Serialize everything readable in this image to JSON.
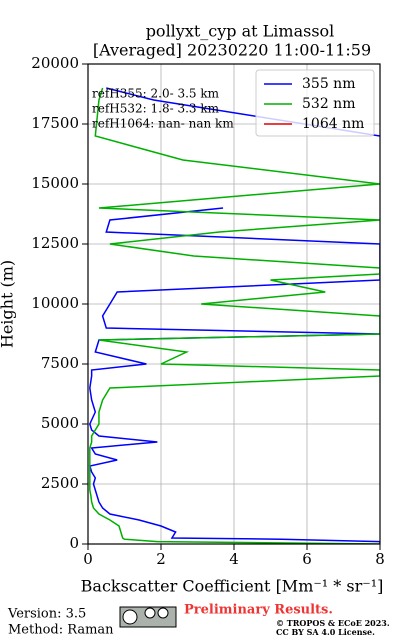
{
  "chart_data": {
    "type": "profile",
    "title": "pollyxt_cyp at Limassol",
    "subtitle": "[Averaged] 20230220 11:00-11:59",
    "xlabel": "Backscatter Coefficient [Mm⁻¹ * sr⁻¹]",
    "ylabel": "Height (m)",
    "y": [
      0,
      100,
      200,
      250,
      500,
      750,
      1000,
      1250,
      1500,
      1750,
      2000,
      2250,
      2500,
      2750,
      3000,
      3250,
      3500,
      3750,
      4000,
      4250,
      4500,
      4750,
      5000,
      5500,
      6000,
      6500,
      7000,
      7250,
      7500,
      8000,
      8500,
      8750,
      9000,
      9500,
      10000,
      10500,
      11000,
      11250,
      11500,
      12000,
      12500,
      13000,
      13500,
      14000,
      15000,
      16000,
      17000,
      18500,
      19000
    ],
    "series": [
      {
        "name": "355 nm",
        "color": "#0000ff",
        "values": [
          8,
          8,
          5.3,
          2.3,
          2.4,
          2.0,
          1.4,
          0.6,
          0.4,
          0.3,
          0.25,
          0.2,
          0.15,
          0.2,
          0.1,
          0.05,
          0.8,
          0.2,
          0.1,
          1.9,
          0.3,
          0.1,
          0.05,
          0.2,
          0.1,
          0.05,
          0.1,
          0.1,
          1.6,
          0.2,
          0.3,
          8,
          0.5,
          0.4,
          0.6,
          0.8,
          8,
          8,
          8,
          8,
          8,
          0.5,
          0.6,
          3.7,
          null,
          null,
          8,
          1.8,
          0.5
        ]
      },
      {
        "name": "532 nm",
        "color": "#00b000",
        "values": [
          8,
          1.9,
          1.0,
          0.95,
          0.9,
          0.85,
          0.6,
          0.3,
          0.15,
          0.1,
          0.08,
          0.05,
          0.05,
          0.05,
          0.05,
          0.05,
          0.05,
          0.05,
          0.05,
          0.1,
          0.1,
          0.2,
          0.3,
          0.3,
          0.4,
          0.6,
          8,
          8,
          2.0,
          2.7,
          0.3,
          8,
          8,
          8,
          3.1,
          6.5,
          5.0,
          8,
          8,
          2.9,
          0.6,
          3.6,
          8,
          0.3,
          8,
          2.6,
          0.2,
          0.3,
          0.4
        ]
      },
      {
        "name": "1064 nm",
        "color": "#e00000",
        "values": [
          null,
          null,
          null,
          null,
          null,
          null,
          null,
          null,
          null,
          null,
          null,
          null,
          null,
          null,
          null,
          null,
          null,
          null,
          null,
          null,
          null,
          null,
          null,
          null,
          null,
          null,
          null,
          null,
          null,
          null,
          null,
          null,
          null,
          null,
          null,
          null,
          null,
          null,
          null,
          null,
          null,
          null,
          null,
          null,
          null,
          null,
          null,
          null,
          null
        ]
      }
    ],
    "annotations": [
      "refH355:  2.0- 3.5 km",
      "refH532:  1.8- 3.3 km",
      "refH1064:  nan- nan km"
    ],
    "xlim": [
      0,
      8
    ],
    "xticks": [
      0,
      2,
      4,
      6,
      8
    ],
    "ylim": [
      0,
      20000
    ],
    "yticks": [
      0,
      2500,
      5000,
      7500,
      10000,
      12500,
      15000,
      17500,
      20000
    ],
    "grid": true,
    "legend": "upper right"
  },
  "footer": {
    "version": "Version: 3.5",
    "method": "Method: Raman",
    "notice": "Preliminary Results.",
    "copyright": "© TROPOS & ECoE 2023.",
    "license": "CC BY SA 4.0 License."
  }
}
